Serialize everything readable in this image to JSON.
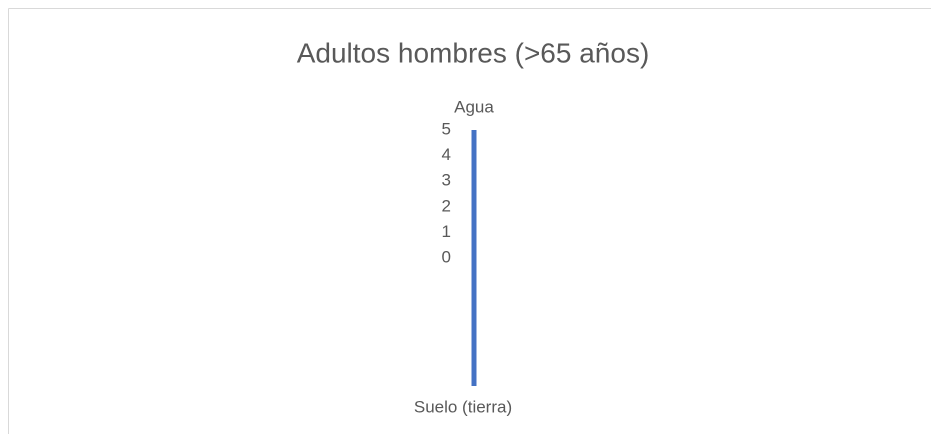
{
  "chart_data": {
    "type": "radar",
    "title": "Adultos hombres (>65 años)",
    "categories": [
      "Agua",
      "Suelo (tierra)"
    ],
    "series": [
      {
        "color": "#4472c4",
        "values": [
          5,
          5
        ]
      }
    ],
    "rlim": [
      0,
      5
    ],
    "rticks": [
      0,
      1,
      2,
      3,
      4,
      5
    ],
    "grid": false
  }
}
